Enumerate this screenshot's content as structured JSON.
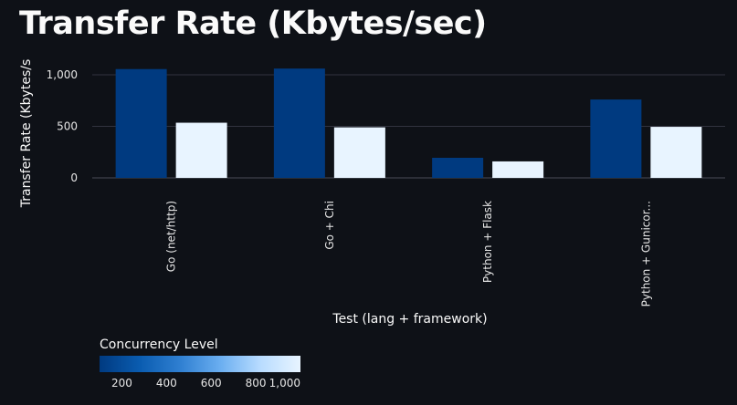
{
  "chart_data": {
    "type": "bar",
    "title": "Transfer Rate (Kbytes/sec)",
    "xlabel": "Test (lang + framework)",
    "ylabel": "Transfer Rate (Kbytes/s",
    "categories": [
      "Go (net/http)",
      "Go + Chi",
      "Python + Flask",
      "Python + Gunicor..."
    ],
    "series": [
      {
        "concurrency": 100,
        "values": [
          1055,
          1060,
          195,
          760
        ]
      },
      {
        "concurrency": 1000,
        "values": [
          535,
          490,
          160,
          495
        ]
      }
    ],
    "ylim": [
      -150,
      1150
    ],
    "yticks": [
      0,
      500,
      1000
    ],
    "ytick_labels": [
      "0",
      "500",
      "1,000"
    ],
    "grid": true,
    "legend": {
      "title": "Concurrency Level",
      "placement": "bottom-left",
      "type": "color-gradient",
      "range": [
        100,
        1000
      ],
      "ticks": [
        200,
        400,
        600,
        800,
        1000
      ],
      "tick_labels": [
        "200",
        "400",
        "600",
        "800",
        "1,000"
      ],
      "colors": [
        "#003a80",
        "#0a5cb0",
        "#2f7fd1",
        "#6aaef0",
        "#b8dcff",
        "#e8f4ff"
      ]
    }
  }
}
